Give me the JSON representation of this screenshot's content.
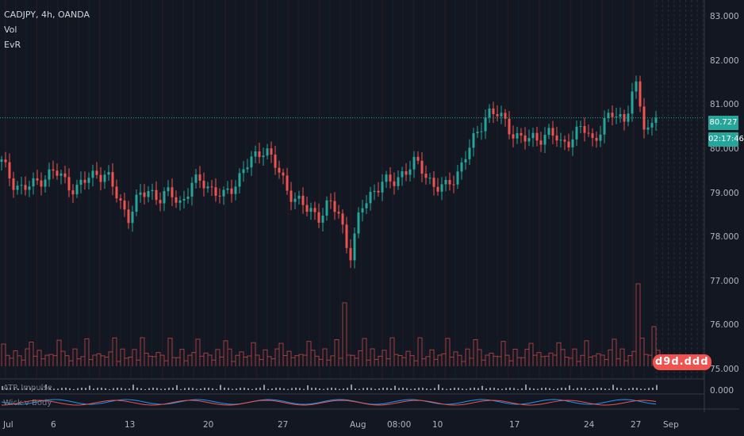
{
  "legend": {
    "symbol": "CADJPY, 4h, OANDA",
    "vol": "Vol",
    "evr": "EvR"
  },
  "sub_panels": {
    "atr": "ATR Impulse",
    "wick": "Wick v Body",
    "atr_value": "0.000"
  },
  "price_axis": [
    "83.000",
    "82.000",
    "81.000",
    "80.000",
    "79.000",
    "78.000",
    "77.000",
    "76.000",
    "75.000"
  ],
  "last_price": "80.727",
  "countdown": "02:17:46",
  "volume_text": "d9d.ddd",
  "date_axis": [
    "Jul",
    "6",
    "13",
    "20",
    "27",
    "Aug",
    "08:00",
    "10",
    "17",
    "24",
    "27",
    "Sep"
  ],
  "colors": {
    "background": "#131722",
    "up": "#26a69a",
    "down": "#ef5350",
    "grid": "#1e222d",
    "last_price_line": "#26a69a"
  },
  "chart_data": {
    "type": "candlestick",
    "symbol": "CADJPY",
    "timeframe": "4h",
    "ylim": [
      74.8,
      83.4
    ],
    "x_ticks": [
      "Jul",
      "6",
      "13",
      "20",
      "27",
      "Aug",
      "08:00",
      "10",
      "17",
      "24",
      "27",
      "Sep"
    ],
    "y_ticks": [
      75,
      76,
      77,
      78,
      79,
      80,
      81,
      82,
      83
    ],
    "close_path": [
      79.7,
      79.3,
      79.1,
      79.2,
      79.4,
      79.5,
      79.3,
      79.1,
      79.3,
      79.5,
      79.4,
      78.9,
      78.5,
      78.9,
      79.1,
      78.9,
      79.0,
      78.8,
      79.2,
      79.3,
      79.1,
      78.9,
      79.2,
      79.6,
      79.8,
      80.1,
      79.6,
      79.1,
      78.9,
      78.6,
      78.5,
      78.8,
      78.5,
      77.6,
      78.6,
      79.0,
      79.3,
      79.2,
      79.5,
      79.7,
      79.5,
      79.2,
      79.1,
      79.4,
      79.9,
      80.3,
      80.9,
      80.8,
      80.5,
      80.3,
      80.2,
      80.3,
      80.4,
      80.1,
      80.3,
      80.5,
      80.2,
      80.6,
      80.8,
      80.7,
      81.5,
      80.4,
      80.727
    ],
    "last_price": 80.727
  }
}
